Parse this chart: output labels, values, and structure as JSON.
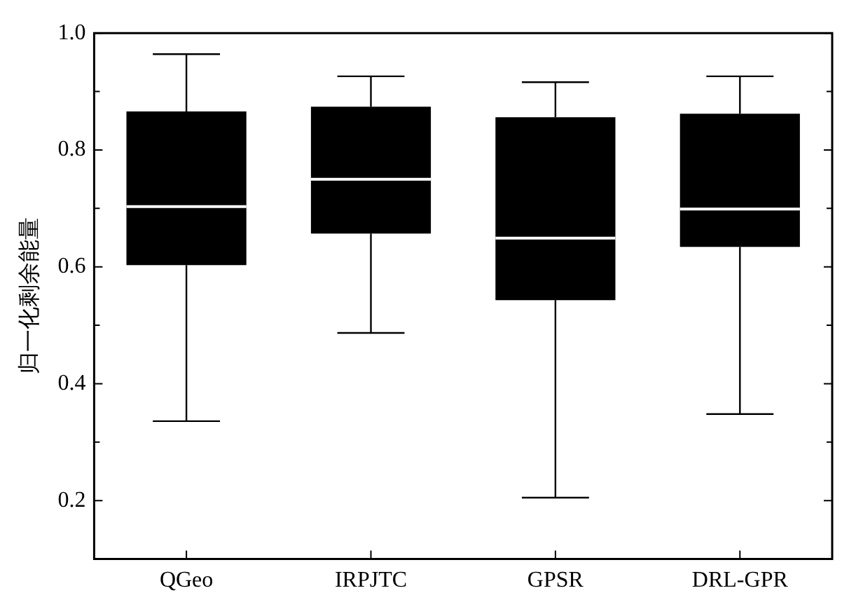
{
  "chart_data": {
    "type": "box",
    "ylabel": "归一化剩余能量",
    "categories": [
      "QGeo",
      "IRPJTC",
      "GPSR",
      "DRL-GPR"
    ],
    "color": "#000000",
    "boxes": [
      {
        "low": 0.336,
        "q1": 0.603,
        "median": 0.703,
        "q3": 0.866,
        "high": 0.964
      },
      {
        "low": 0.487,
        "q1": 0.657,
        "median": 0.75,
        "q3": 0.874,
        "high": 0.926
      },
      {
        "low": 0.205,
        "q1": 0.543,
        "median": 0.649,
        "q3": 0.856,
        "high": 0.916
      },
      {
        "low": 0.348,
        "q1": 0.634,
        "median": 0.699,
        "q3": 0.862,
        "high": 0.926
      }
    ],
    "ylim": [
      0.1,
      1.0
    ],
    "yticks": [
      {
        "value": 0.2,
        "label": "0.2"
      },
      {
        "value": 0.3,
        "label": null
      },
      {
        "value": 0.4,
        "label": "0.4"
      },
      {
        "value": 0.5,
        "label": null
      },
      {
        "value": 0.6,
        "label": "0.6"
      },
      {
        "value": 0.7,
        "label": null
      },
      {
        "value": 0.8,
        "label": "0.8"
      },
      {
        "value": 0.9,
        "label": null
      },
      {
        "value": 1.0,
        "label": "1.0"
      }
    ],
    "grid": false,
    "legend": false
  }
}
